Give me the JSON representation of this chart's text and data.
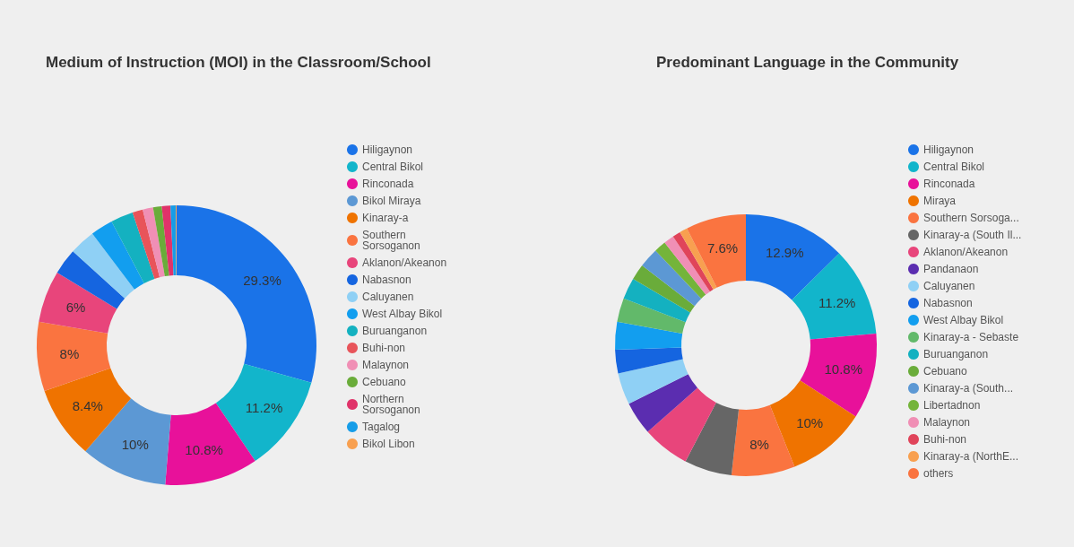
{
  "chart_data": [
    {
      "type": "donut",
      "title": "Medium of Instruction (MOI) in the Classroom/School",
      "categories": [
        "Hiligaynon",
        "Central Bikol",
        "Rinconada",
        "Bikol Miraya",
        "Kinaray-a",
        "Southern Sorsoganon",
        "Aklanon/Akeanon",
        "Nabasnon",
        "Caluyanen",
        "West Albay Bikol",
        "Buruanganon",
        "Buhi-non",
        "Malaynon",
        "Cebuano",
        "Northern Sorsoganon",
        "Tagalog",
        "Bikol Libon"
      ],
      "values": [
        29.3,
        11.2,
        10.8,
        10,
        8.4,
        8,
        6,
        3,
        3,
        2.6,
        2.6,
        1.2,
        1.2,
        1.0,
        1.0,
        0.6,
        0.1
      ],
      "value_labels": [
        "29.3%",
        "11.2%",
        "10.8%",
        "10%",
        "8.4%",
        "8%",
        "6%",
        null,
        null,
        null,
        null,
        null,
        null,
        null,
        null,
        null,
        null
      ],
      "colors": [
        "#1a73e8",
        "#12b5cb",
        "#e8119a",
        "#5c98d4",
        "#ef7300",
        "#fa7440",
        "#e8457b",
        "#1565e0",
        "#8fd0f5",
        "#129eef",
        "#14b1c0",
        "#e8545a",
        "#f08fb5",
        "#6aac3a",
        "#e0336a",
        "#169de8",
        "#f8a050"
      ],
      "legend": "right"
    },
    {
      "type": "donut",
      "title": "Predominant Language in the Community",
      "categories": [
        "Hiligaynon",
        "Central Bikol",
        "Rinconada",
        "Miraya",
        "Southern Sorsoga...",
        "Kinaray-a (South Il...",
        "Aklanon/Akeanon",
        "Pandanaon",
        "Caluyanen",
        "Nabasnon",
        "West Albay Bikol",
        "Kinaray-a - Sebaste",
        "Buruanganon",
        "Cebuano",
        "Kinaray-a (South...",
        "Libertadnon",
        "Malaynon",
        "Buhi-non",
        "Kinaray-a (NorthE...",
        "others"
      ],
      "values": [
        12.9,
        11.2,
        10.8,
        10,
        8,
        6,
        6,
        4.2,
        4,
        3,
        3.5,
        3,
        2.7,
        2,
        2.5,
        1.5,
        1.3,
        1,
        1,
        7.6
      ],
      "value_labels": [
        "12.9%",
        "11.2%",
        "10.8%",
        "10%",
        "8%",
        null,
        null,
        null,
        null,
        null,
        null,
        null,
        null,
        null,
        null,
        null,
        null,
        null,
        null,
        "7.6%"
      ],
      "colors": [
        "#1a73e8",
        "#12b5cb",
        "#e8119a",
        "#ef7300",
        "#fa7440",
        "#666666",
        "#e8457b",
        "#5b2db0",
        "#8fd0f5",
        "#1565e0",
        "#129eef",
        "#62b96a",
        "#14b1c0",
        "#6aac3a",
        "#5c98d4",
        "#74b43a",
        "#f08fb5",
        "#e0445a",
        "#f8a050",
        "#fa7440"
      ],
      "legend": "right"
    }
  ]
}
